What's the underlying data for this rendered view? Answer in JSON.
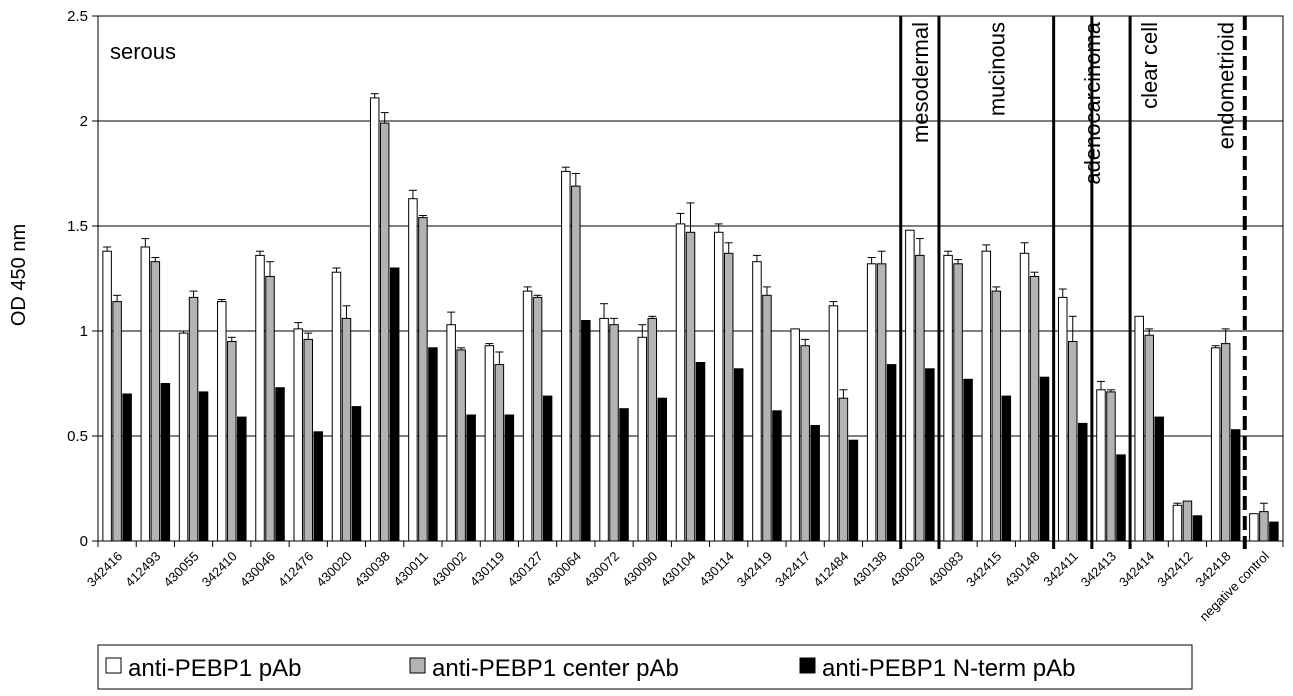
{
  "chart_data": {
    "type": "bar",
    "ylabel": "OD 450 nm",
    "ylim": [
      0,
      2.5
    ],
    "yticks": [
      "0",
      "0.5",
      "1",
      "1.5",
      "2",
      "2.5"
    ],
    "grid": "horizontal",
    "legend_placement": "bottom",
    "categories": [
      "342416",
      "412493",
      "430055",
      "342410",
      "430046",
      "412476",
      "430020",
      "430038",
      "430011",
      "430002",
      "430119",
      "430127",
      "430064",
      "430072",
      "430090",
      "430104",
      "430114",
      "342419",
      "342417",
      "412484",
      "430138",
      "430029",
      "430083",
      "342415",
      "430148",
      "342411",
      "342413",
      "342414",
      "342412",
      "342418",
      "negative control"
    ],
    "series": [
      {
        "name": "anti-PEBP1 pAb",
        "color": "#ffffff",
        "values": [
          1.38,
          1.4,
          0.99,
          1.14,
          1.36,
          1.01,
          1.28,
          2.11,
          1.63,
          1.03,
          0.93,
          1.19,
          1.76,
          1.06,
          0.97,
          1.51,
          1.47,
          1.33,
          1.01,
          1.12,
          1.32,
          1.48,
          1.36,
          1.38,
          1.37,
          1.16,
          0.72,
          1.07,
          0.17,
          0.92,
          0.13
        ],
        "errors": [
          0.02,
          0.04,
          0.01,
          0.01,
          0.02,
          0.03,
          0.02,
          0.02,
          0.04,
          0.06,
          0.01,
          0.02,
          0.02,
          0.07,
          0.06,
          0.05,
          0.04,
          0.03,
          0.0,
          0.02,
          0.03,
          0.0,
          0.02,
          0.03,
          0.05,
          0.04,
          0.04,
          0.0,
          0.01,
          0.01,
          0.0
        ]
      },
      {
        "name": "anti-PEBP1 center pAb",
        "color": "#b3b3b3",
        "values": [
          1.14,
          1.33,
          1.16,
          0.95,
          1.26,
          0.96,
          1.06,
          1.99,
          1.54,
          0.91,
          0.84,
          1.16,
          1.69,
          1.03,
          1.06,
          1.47,
          1.37,
          1.17,
          0.93,
          0.68,
          1.32,
          1.36,
          1.32,
          1.19,
          1.26,
          0.95,
          0.71,
          0.98,
          0.19,
          0.94,
          0.14
        ],
        "errors": [
          0.03,
          0.02,
          0.03,
          0.02,
          0.07,
          0.03,
          0.06,
          0.05,
          0.01,
          0.01,
          0.06,
          0.01,
          0.06,
          0.03,
          0.01,
          0.14,
          0.05,
          0.04,
          0.03,
          0.04,
          0.06,
          0.08,
          0.02,
          0.02,
          0.02,
          0.12,
          0.01,
          0.03,
          0.0,
          0.07,
          0.04
        ]
      },
      {
        "name": "anti-PEBP1 N-term pAb",
        "color": "#000000",
        "values": [
          0.7,
          0.75,
          0.71,
          0.59,
          0.73,
          0.52,
          0.64,
          1.3,
          0.92,
          0.6,
          0.6,
          0.69,
          1.05,
          0.63,
          0.68,
          0.85,
          0.82,
          0.62,
          0.55,
          0.48,
          0.84,
          0.82,
          0.77,
          0.69,
          0.78,
          0.56,
          0.41,
          0.59,
          0.12,
          0.53,
          0.09
        ]
      }
    ],
    "group_labels": [
      {
        "label": "serous",
        "orientation": "horizontal",
        "start": 0,
        "end": 20
      },
      {
        "label": "mesodermal",
        "orientation": "vertical",
        "start": 21,
        "end": 21
      },
      {
        "label": "mucinous",
        "orientation": "vertical",
        "start": 22,
        "end": 24
      },
      {
        "label": "adenocarcinoma",
        "orientation": "vertical",
        "start": 25,
        "end": 26
      },
      {
        "label": "clear cell",
        "orientation": "vertical",
        "start": 27,
        "end": 27
      },
      {
        "label": "endometrioid",
        "orientation": "vertical",
        "start": 28,
        "end": 30
      }
    ],
    "separators": [
      {
        "after": 20,
        "style": "solid"
      },
      {
        "after": 21,
        "style": "solid"
      },
      {
        "after": 24,
        "style": "solid"
      },
      {
        "after": 25,
        "style": "solid"
      },
      {
        "after": 26,
        "style": "solid"
      },
      {
        "after": 29,
        "style": "dashed"
      }
    ]
  }
}
